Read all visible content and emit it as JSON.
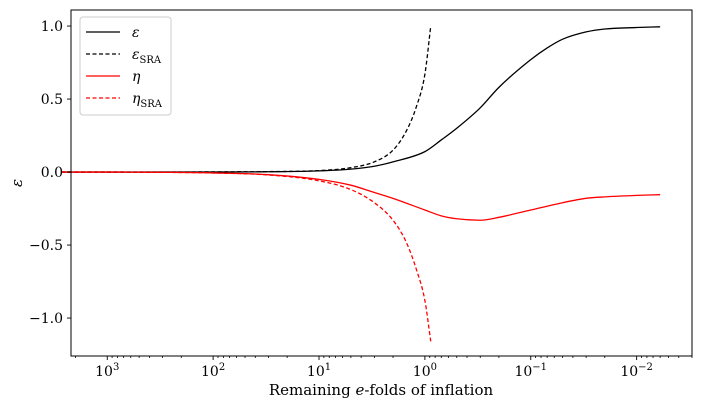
{
  "chart_data": {
    "type": "line",
    "xlabel": "Remaining e-folds of inflation",
    "ylabel": "ε",
    "x_scale": "log",
    "x_reversed": true,
    "xlim": [
      2200,
      0.003
    ],
    "ylim": [
      -1.26,
      1.11
    ],
    "grid": false,
    "legend": "top-left",
    "x_ticks": [
      {
        "value": 1000,
        "base": "10",
        "exp": "3"
      },
      {
        "value": 100,
        "base": "10",
        "exp": "2"
      },
      {
        "value": 10,
        "base": "10",
        "exp": "1"
      },
      {
        "value": 1,
        "base": "10",
        "exp": "0"
      },
      {
        "value": 0.1,
        "base": "10",
        "exp": "−1"
      },
      {
        "value": 0.01,
        "base": "10",
        "exp": "−2"
      }
    ],
    "y_ticks": [
      {
        "value": 1.0,
        "label": "1.0"
      },
      {
        "value": 0.5,
        "label": "0.5"
      },
      {
        "value": 0.0,
        "label": "0.0"
      },
      {
        "value": -0.5,
        "label": "−0.5"
      },
      {
        "value": -1.0,
        "label": "−1.0"
      }
    ],
    "series": [
      {
        "name": "ε",
        "sub": "",
        "color": "#000000",
        "dash": "solid",
        "x": [
          2700,
          1000,
          300,
          100,
          30,
          10,
          5,
          3,
          2,
          1,
          0.7,
          0.5,
          0.3,
          0.2,
          0.1,
          0.07,
          0.05,
          0.03,
          0.02,
          0.01,
          0.006
        ],
        "y": [
          0.0,
          0.0,
          0.0,
          0.0,
          0.002,
          0.008,
          0.02,
          0.04,
          0.07,
          0.14,
          0.22,
          0.3,
          0.44,
          0.58,
          0.77,
          0.85,
          0.91,
          0.96,
          0.98,
          0.99,
          0.995
        ]
      },
      {
        "name": "ε",
        "sub": "SRA",
        "color": "#000000",
        "dash": "dashed",
        "x": [
          2700,
          1000,
          300,
          100,
          30,
          10,
          5,
          3,
          2,
          1.5,
          1.2,
          1.0,
          0.88
        ],
        "y": [
          0.0,
          0.0,
          0.0,
          0.001,
          0.003,
          0.01,
          0.03,
          0.07,
          0.15,
          0.28,
          0.45,
          0.67,
          1.0
        ]
      },
      {
        "name": "η",
        "sub": "",
        "color": "#ff0000",
        "dash": "solid",
        "x": [
          2700,
          1000,
          300,
          100,
          30,
          10,
          5,
          3,
          2,
          1,
          0.7,
          0.5,
          0.3,
          0.2,
          0.1,
          0.05,
          0.03,
          0.02,
          0.01,
          0.006
        ],
        "y": [
          0.0,
          0.0,
          -0.002,
          -0.006,
          -0.018,
          -0.05,
          -0.09,
          -0.14,
          -0.18,
          -0.26,
          -0.3,
          -0.32,
          -0.33,
          -0.31,
          -0.26,
          -0.21,
          -0.18,
          -0.17,
          -0.16,
          -0.155
        ]
      },
      {
        "name": "η",
        "sub": "SRA",
        "color": "#ff0000",
        "dash": "dashed",
        "x": [
          2700,
          1000,
          300,
          100,
          30,
          10,
          5,
          3,
          2,
          1.5,
          1.2,
          1.0,
          0.88
        ],
        "y": [
          0.0,
          0.0,
          -0.002,
          -0.006,
          -0.02,
          -0.06,
          -0.12,
          -0.21,
          -0.33,
          -0.48,
          -0.67,
          -0.88,
          -1.16
        ]
      }
    ]
  }
}
